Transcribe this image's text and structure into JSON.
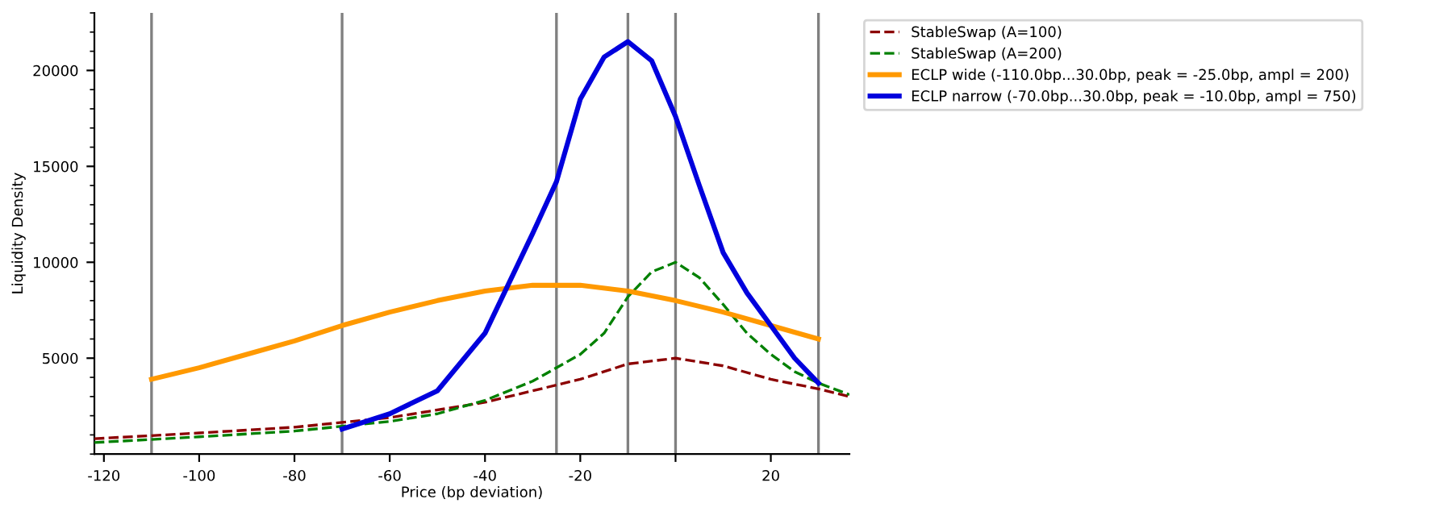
{
  "chart_data": {
    "type": "line",
    "xlabel": "Price (bp deviation)",
    "ylabel": "Liquidity Density",
    "xlim": [
      -122,
      36.5
    ],
    "ylim": [
      0,
      23000
    ],
    "xticks": [
      -120,
      -100,
      -80,
      -60,
      -40,
      -20,
      {
        "value": 0,
        "label": null
      },
      20
    ],
    "yticks": [
      5000,
      10000,
      15000,
      20000
    ],
    "grid": false,
    "legend": "top right",
    "ref_lines": [
      {
        "axis": "x",
        "value": -110,
        "color": "#808080"
      },
      {
        "axis": "x",
        "value": -70,
        "color": "#808080"
      },
      {
        "axis": "x",
        "value": -25,
        "color": "#808080"
      },
      {
        "axis": "x",
        "value": -10,
        "color": "#808080"
      },
      {
        "axis": "x",
        "value": 0,
        "color": "#808080"
      },
      {
        "axis": "x",
        "value": 30,
        "color": "#808080"
      }
    ],
    "series": [
      {
        "name": "StableSwap (A=100)",
        "color": "#8b0000",
        "line_style": "dashed",
        "x": [
          -122,
          -100,
          -80,
          -60,
          -40,
          -30,
          -20,
          -10,
          0,
          10,
          20,
          30,
          36.5
        ],
        "values": [
          800,
          1100,
          1400,
          1900,
          2700,
          3300,
          3900,
          4700,
          5000,
          4600,
          3900,
          3400,
          3000
        ]
      },
      {
        "name": "StableSwap (A=200)",
        "color": "#008000",
        "line_style": "dashed",
        "x": [
          -122,
          -100,
          -80,
          -60,
          -50,
          -40,
          -30,
          -20,
          -15,
          -10,
          -5,
          0,
          5,
          10,
          15,
          20,
          25,
          30,
          36.5
        ],
        "values": [
          600,
          900,
          1200,
          1700,
          2100,
          2800,
          3800,
          5200,
          6300,
          8200,
          9500,
          10000,
          9200,
          7800,
          6300,
          5200,
          4300,
          3700,
          3100
        ]
      },
      {
        "name": "ECLP wide (-110.0bp...30.0bp, peak = -25.0bp, ampl = 200)",
        "color": "#ff9900",
        "line_style": "solid",
        "x": [
          -110,
          -100,
          -90,
          -80,
          -70,
          -60,
          -50,
          -40,
          -30,
          -25,
          -20,
          -10,
          0,
          10,
          20,
          30
        ],
        "values": [
          3900,
          4500,
          5200,
          5900,
          6700,
          7400,
          8000,
          8500,
          8800,
          8800,
          8800,
          8500,
          8000,
          7400,
          6700,
          6000
        ]
      },
      {
        "name": "ECLP narrow (-70.0bp...30.0bp, peak = -10.0bp, ampl = 750)",
        "color": "#0000dd",
        "line_style": "solid",
        "x": [
          -70,
          -60,
          -50,
          -40,
          -30,
          -25,
          -20,
          -15,
          -10,
          -5,
          0,
          5,
          10,
          15,
          20,
          25,
          30
        ],
        "values": [
          1300,
          2100,
          3300,
          6300,
          11500,
          14200,
          18500,
          20700,
          21500,
          20500,
          17600,
          14000,
          10500,
          8400,
          6700,
          5000,
          3700
        ]
      }
    ]
  }
}
